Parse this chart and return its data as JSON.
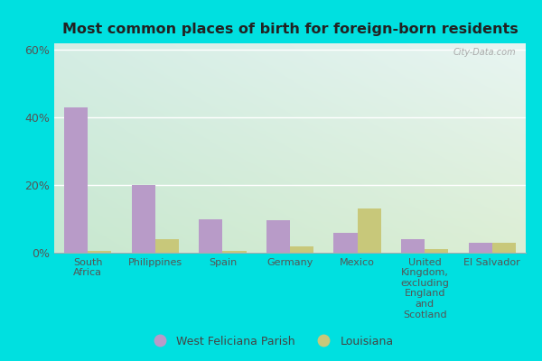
{
  "title": "Most common places of birth for foreign-born residents",
  "categories": [
    "South\nAfrica",
    "Philippines",
    "Spain",
    "Germany",
    "Mexico",
    "United\nKingdom,\nexcluding\nEngland\nand\nScotland",
    "El Salvador"
  ],
  "parish_values": [
    43,
    20,
    10,
    9.5,
    6,
    4,
    3
  ],
  "louisiana_values": [
    0.5,
    4,
    0.5,
    2,
    13,
    1,
    3
  ],
  "parish_color": "#b89bc8",
  "louisiana_color": "#c8c87a",
  "ylim": [
    0,
    62
  ],
  "yticks": [
    0,
    20,
    40,
    60
  ],
  "yticklabels": [
    "0%",
    "20%",
    "40%",
    "60%"
  ],
  "outer_bg": "#00e0e0",
  "bar_width": 0.35,
  "legend_labels": [
    "West Feliciana Parish",
    "Louisiana"
  ],
  "grid_color": "#cccccc",
  "bg_color_tl": "#d8ede8",
  "bg_color_tr": "#e8f4f0",
  "bg_color_bl": "#d0ead8",
  "bg_color_br": "#e0eed8"
}
